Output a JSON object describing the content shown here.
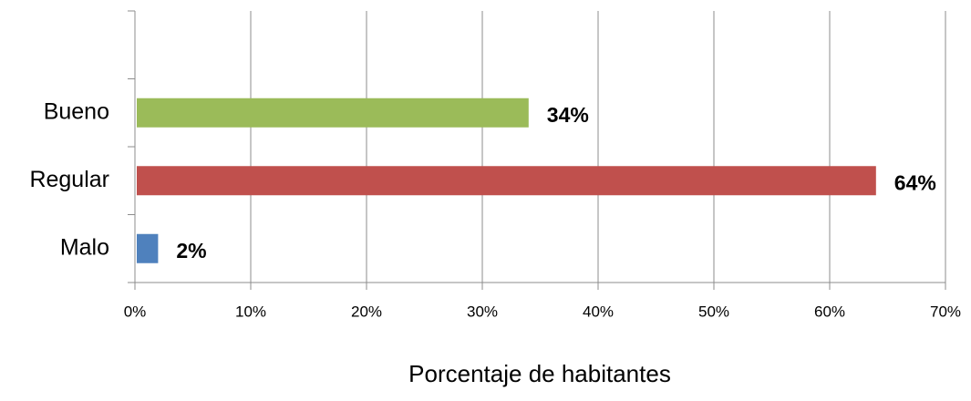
{
  "chart_data": {
    "type": "bar",
    "orientation": "horizontal",
    "categories": [
      null,
      "Bueno",
      "Regular",
      "Malo"
    ],
    "values": [
      null,
      34,
      64,
      2
    ],
    "value_labels": [
      null,
      "34%",
      "64%",
      "2%"
    ],
    "colors": [
      null,
      "#9bbb59",
      "#c0504d",
      "#4f81bd"
    ],
    "x_label": "Porcentaje de habitantes",
    "xlim": [
      0,
      70
    ],
    "xticks": [
      {
        "value": 0,
        "label": "0%"
      },
      {
        "value": 10,
        "label": "10%"
      },
      {
        "value": 20,
        "label": "20%"
      },
      {
        "value": 30,
        "label": "30%"
      },
      {
        "value": 40,
        "label": "40%"
      },
      {
        "value": 50,
        "label": "50%"
      },
      {
        "value": 60,
        "label": "60%"
      },
      {
        "value": 70,
        "label": "70%"
      }
    ],
    "grid": true
  }
}
